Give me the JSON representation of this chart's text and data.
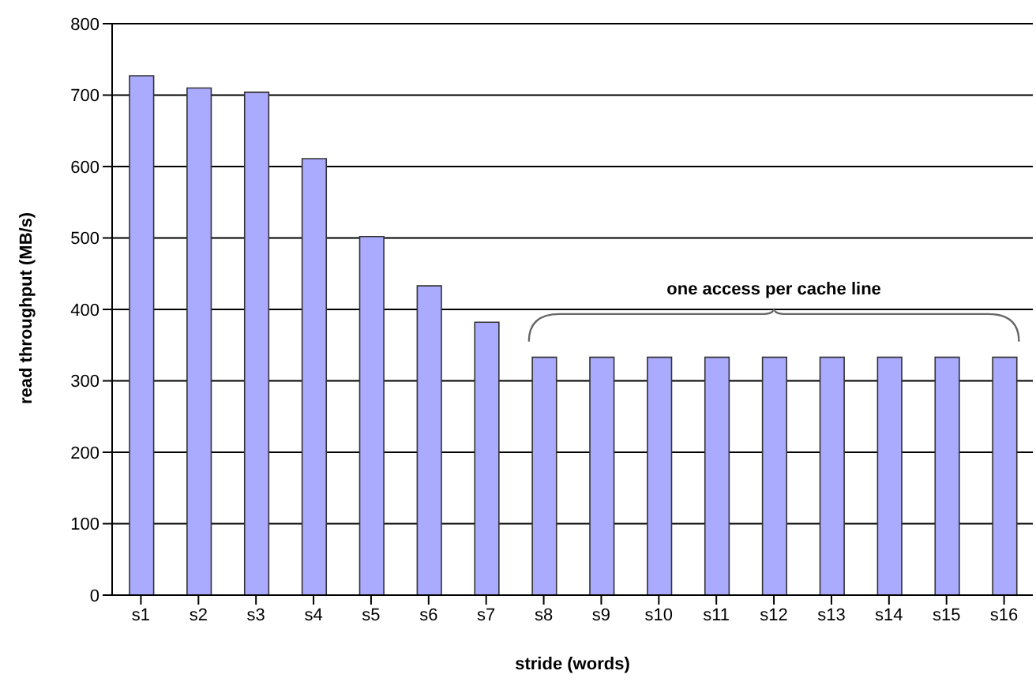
{
  "chart_data": {
    "type": "bar",
    "xlabel": "stride (words)",
    "ylabel": "read throughput (MB/s)",
    "categories": [
      "s1",
      "s2",
      "s3",
      "s4",
      "s5",
      "s6",
      "s7",
      "s8",
      "s9",
      "s10",
      "s11",
      "s12",
      "s13",
      "s14",
      "s15",
      "s16"
    ],
    "values": [
      727,
      710,
      704,
      611,
      502,
      433,
      382,
      333,
      333,
      333,
      333,
      333,
      333,
      333,
      333,
      333
    ],
    "color": "#aaaaff",
    "ylim": [
      0,
      800
    ],
    "yticks": [
      0,
      100,
      200,
      300,
      400,
      500,
      600,
      700,
      800
    ],
    "grid": "y",
    "annotations": [
      "one access per cache line"
    ]
  }
}
